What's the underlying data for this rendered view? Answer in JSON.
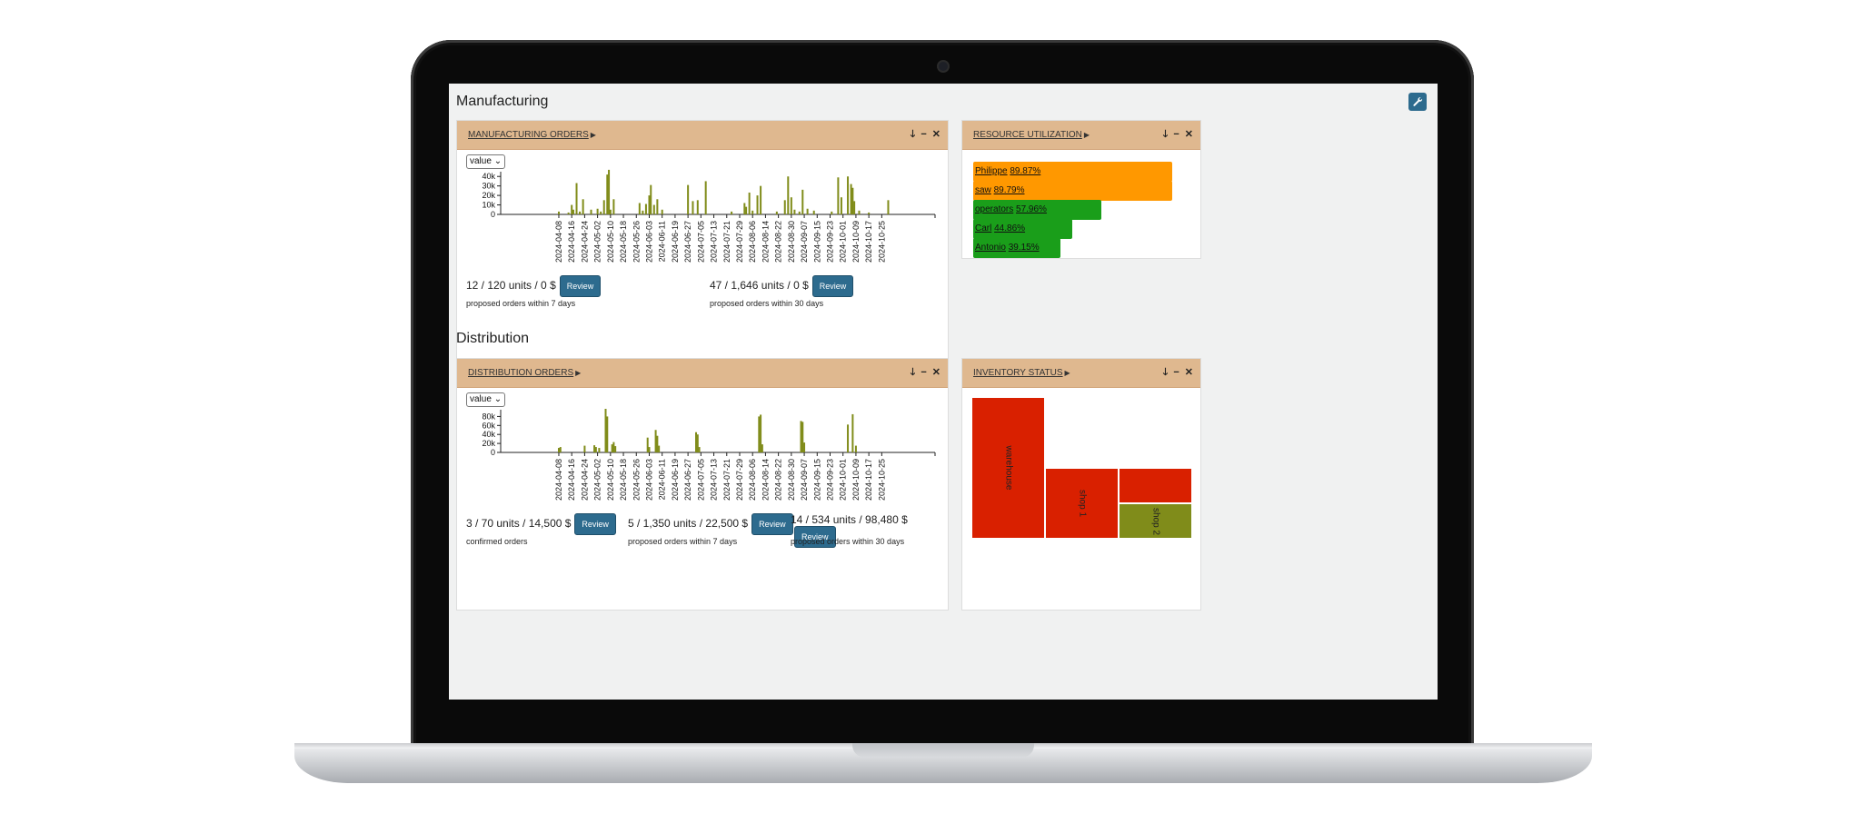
{
  "manufacturing": {
    "section_title": "Manufacturing",
    "orders_panel": {
      "title": "MANUFACTURING ORDERS",
      "select_value": "value",
      "stats": [
        {
          "main": "12 / 120 units / 0 $",
          "sub": "proposed orders within 7 days",
          "button": "Review"
        },
        {
          "main": "47 / 1,646 units / 0 $",
          "sub": "proposed orders within 30 days",
          "button": "Review"
        }
      ]
    },
    "resource_panel": {
      "title": "RESOURCE UTILIZATION",
      "resources": [
        {
          "name": "Philippe",
          "pct": "89.87%",
          "value": 89.87,
          "color": "#ff9800"
        },
        {
          "name": "saw",
          "pct": "89.79%",
          "value": 89.79,
          "color": "#ff9800"
        },
        {
          "name": "operators",
          "pct": "57.96%",
          "value": 57.96,
          "color": "#1a9e1a"
        },
        {
          "name": "Carl",
          "pct": "44.86%",
          "value": 44.86,
          "color": "#1a9e1a"
        },
        {
          "name": "Antonio",
          "pct": "39.15%",
          "value": 39.15,
          "color": "#1a9e1a"
        }
      ]
    }
  },
  "distribution": {
    "section_title": "Distribution",
    "orders_panel": {
      "title": "DISTRIBUTION ORDERS",
      "select_value": "value",
      "stats": [
        {
          "main": "3 / 70 units / 14,500 $",
          "sub": "confirmed orders",
          "button": "Review"
        },
        {
          "main": "5 / 1,350 units / 22,500 $",
          "sub": "proposed orders within 7 days",
          "button": "Review"
        },
        {
          "main": "14 / 534 units / 98,480 $",
          "sub": "proposed orders within 30 days",
          "button": "Review"
        }
      ]
    },
    "inventory_panel": {
      "title": "INVENTORY STATUS",
      "locations": [
        {
          "name": "warehouse",
          "color": "#d92000"
        },
        {
          "name": "shop 1",
          "color": "#d92000"
        },
        {
          "name": "shop 2",
          "color": "#808c1a"
        }
      ]
    }
  },
  "icons": {
    "settings": "wrench-icon",
    "tools": [
      "arrow-down-icon",
      "minimize-icon",
      "close-icon"
    ],
    "tool_glyphs": [
      "🡓",
      "−",
      "✕"
    ]
  },
  "chart_data": [
    {
      "type": "bar",
      "title": "",
      "xlabel": "",
      "ylabel": "",
      "ylim": [
        0,
        45000
      ],
      "yticks": [
        "0",
        "10k",
        "20k",
        "30k",
        "40k"
      ],
      "ytick_values": [
        0,
        10000,
        20000,
        30000,
        40000
      ],
      "xticks": [
        "2024-04-08",
        "2024-04-16",
        "2024-04-24",
        "2024-05-02",
        "2024-05-10",
        "2024-05-18",
        "2024-05-26",
        "2024-06-03",
        "2024-06-11",
        "2024-06-19",
        "2024-06-27",
        "2024-07-05",
        "2024-07-13",
        "2024-07-21",
        "2024-07-29",
        "2024-08-06",
        "2024-08-14",
        "2024-08-22",
        "2024-08-30",
        "2024-09-07",
        "2024-09-15",
        "2024-09-23",
        "2024-10-01",
        "2024-10-09",
        "2024-10-17",
        "2024-10-25"
      ],
      "color": "#808c1a",
      "bars": [
        {
          "x": "2024-04-08",
          "y": 3000
        },
        {
          "x": "2024-04-14",
          "y": 2000
        },
        {
          "x": "2024-04-16",
          "y": 10000
        },
        {
          "x": "2024-04-17",
          "y": 5000
        },
        {
          "x": "2024-04-19",
          "y": 33000
        },
        {
          "x": "2024-04-21",
          "y": 3000
        },
        {
          "x": "2024-04-23",
          "y": 16000
        },
        {
          "x": "2024-04-28",
          "y": 5000
        },
        {
          "x": "2024-05-02",
          "y": 6000
        },
        {
          "x": "2024-05-04",
          "y": 3000
        },
        {
          "x": "2024-05-06",
          "y": 15000
        },
        {
          "x": "2024-05-08",
          "y": 42000
        },
        {
          "x": "2024-05-09",
          "y": 47000
        },
        {
          "x": "2024-05-10",
          "y": 5000
        },
        {
          "x": "2024-05-12",
          "y": 16000
        },
        {
          "x": "2024-05-28",
          "y": 12000
        },
        {
          "x": "2024-05-30",
          "y": 4000
        },
        {
          "x": "2024-06-01",
          "y": 11000
        },
        {
          "x": "2024-06-03",
          "y": 20000
        },
        {
          "x": "2024-06-04",
          "y": 31000
        },
        {
          "x": "2024-06-06",
          "y": 10000
        },
        {
          "x": "2024-06-08",
          "y": 16000
        },
        {
          "x": "2024-06-11",
          "y": 5000
        },
        {
          "x": "2024-06-27",
          "y": 31000
        },
        {
          "x": "2024-06-30",
          "y": 14000
        },
        {
          "x": "2024-07-03",
          "y": 15000
        },
        {
          "x": "2024-07-08",
          "y": 35000
        },
        {
          "x": "2024-07-24",
          "y": 3000
        },
        {
          "x": "2024-08-01",
          "y": 12000
        },
        {
          "x": "2024-08-02",
          "y": 8000
        },
        {
          "x": "2024-08-04",
          "y": 23000
        },
        {
          "x": "2024-08-06",
          "y": 4000
        },
        {
          "x": "2024-08-09",
          "y": 20000
        },
        {
          "x": "2024-08-11",
          "y": 30000
        },
        {
          "x": "2024-08-21",
          "y": 3000
        },
        {
          "x": "2024-08-26",
          "y": 15000
        },
        {
          "x": "2024-08-28",
          "y": 40000
        },
        {
          "x": "2024-08-30",
          "y": 18000
        },
        {
          "x": "2024-09-01",
          "y": 5000
        },
        {
          "x": "2024-09-04",
          "y": 3000
        },
        {
          "x": "2024-09-06",
          "y": 26000
        },
        {
          "x": "2024-09-09",
          "y": 6000
        },
        {
          "x": "2024-09-13",
          "y": 4000
        },
        {
          "x": "2024-09-24",
          "y": 3000
        },
        {
          "x": "2024-09-28",
          "y": 39000
        },
        {
          "x": "2024-09-30",
          "y": 18000
        },
        {
          "x": "2024-10-04",
          "y": 40000
        },
        {
          "x": "2024-10-06",
          "y": 32000
        },
        {
          "x": "2024-10-07",
          "y": 28000
        },
        {
          "x": "2024-10-08",
          "y": 14000
        },
        {
          "x": "2024-10-11",
          "y": 4000
        },
        {
          "x": "2024-10-17",
          "y": 2000
        },
        {
          "x": "2024-10-29",
          "y": 15000
        }
      ]
    },
    {
      "type": "bar",
      "title": "",
      "xlabel": "",
      "ylabel": "",
      "ylim": [
        0,
        95000
      ],
      "yticks": [
        "0",
        "20k",
        "40k",
        "60k",
        "80k"
      ],
      "ytick_values": [
        0,
        20000,
        40000,
        60000,
        80000
      ],
      "xticks": [
        "2024-04-08",
        "2024-04-16",
        "2024-04-24",
        "2024-05-02",
        "2024-05-10",
        "2024-05-18",
        "2024-05-26",
        "2024-06-03",
        "2024-06-11",
        "2024-06-19",
        "2024-06-27",
        "2024-07-05",
        "2024-07-13",
        "2024-07-21",
        "2024-07-29",
        "2024-08-06",
        "2024-08-14",
        "2024-08-22",
        "2024-08-30",
        "2024-09-07",
        "2024-09-15",
        "2024-09-23",
        "2024-10-01",
        "2024-10-09",
        "2024-10-17",
        "2024-10-25"
      ],
      "color": "#808c1a",
      "bars": [
        {
          "x": "2024-04-08",
          "y": 10000
        },
        {
          "x": "2024-04-09",
          "y": 12000
        },
        {
          "x": "2024-04-24",
          "y": 15000
        },
        {
          "x": "2024-04-30",
          "y": 16000
        },
        {
          "x": "2024-05-01",
          "y": 12000
        },
        {
          "x": "2024-05-03",
          "y": 10000
        },
        {
          "x": "2024-05-07",
          "y": 97000
        },
        {
          "x": "2024-05-08",
          "y": 80000
        },
        {
          "x": "2024-05-11",
          "y": 18000
        },
        {
          "x": "2024-05-12",
          "y": 23000
        },
        {
          "x": "2024-05-13",
          "y": 14000
        },
        {
          "x": "2024-06-02",
          "y": 33000
        },
        {
          "x": "2024-06-03",
          "y": 12000
        },
        {
          "x": "2024-06-07",
          "y": 50000
        },
        {
          "x": "2024-06-08",
          "y": 37000
        },
        {
          "x": "2024-06-09",
          "y": 15000
        },
        {
          "x": "2024-07-02",
          "y": 45000
        },
        {
          "x": "2024-07-03",
          "y": 40000
        },
        {
          "x": "2024-07-04",
          "y": 12000
        },
        {
          "x": "2024-08-10",
          "y": 80000
        },
        {
          "x": "2024-08-11",
          "y": 84000
        },
        {
          "x": "2024-08-12",
          "y": 18000
        },
        {
          "x": "2024-09-05",
          "y": 70000
        },
        {
          "x": "2024-09-06",
          "y": 68000
        },
        {
          "x": "2024-09-07",
          "y": 22000
        },
        {
          "x": "2024-10-04",
          "y": 62000
        },
        {
          "x": "2024-10-07",
          "y": 85000
        },
        {
          "x": "2024-10-09",
          "y": 15000
        }
      ]
    }
  ]
}
